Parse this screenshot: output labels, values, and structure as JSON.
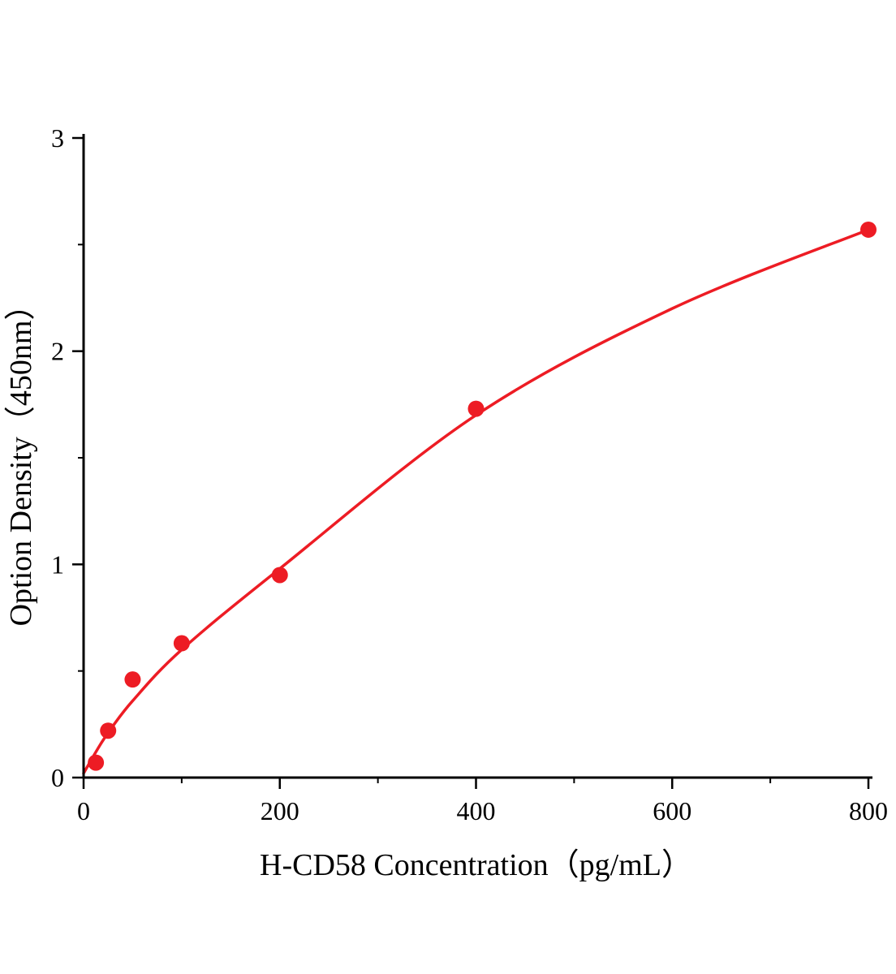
{
  "figure": {
    "background": "#ffffff"
  },
  "chart_data": {
    "type": "scatter",
    "title": "",
    "xlabel": "H-CD58 Concentration（pg/mL）",
    "ylabel": "Option Density（450nm）",
    "xlim": [
      0,
      800
    ],
    "ylim": [
      0,
      3
    ],
    "x_ticks": [
      0,
      200,
      400,
      600,
      800
    ],
    "y_ticks": [
      0,
      1,
      2,
      3
    ],
    "x_minor_step": 100,
    "y_minor_step": 0.5,
    "grid": "off",
    "legend": "none",
    "points": [
      [
        12.5,
        0.07
      ],
      [
        25,
        0.22
      ],
      [
        50,
        0.46
      ],
      [
        100,
        0.63
      ],
      [
        200,
        0.95
      ],
      [
        400,
        1.73
      ],
      [
        800,
        2.57
      ]
    ],
    "fit_curve": [
      [
        0,
        0.02
      ],
      [
        12.5,
        0.12
      ],
      [
        25,
        0.21
      ],
      [
        50,
        0.36
      ],
      [
        100,
        0.6
      ],
      [
        200,
        0.98
      ],
      [
        400,
        1.7
      ],
      [
        600,
        2.2
      ],
      [
        800,
        2.57
      ]
    ],
    "point_color": "#ed1c24",
    "curve_color": "#ed1c24",
    "axis_color": "#000000"
  }
}
